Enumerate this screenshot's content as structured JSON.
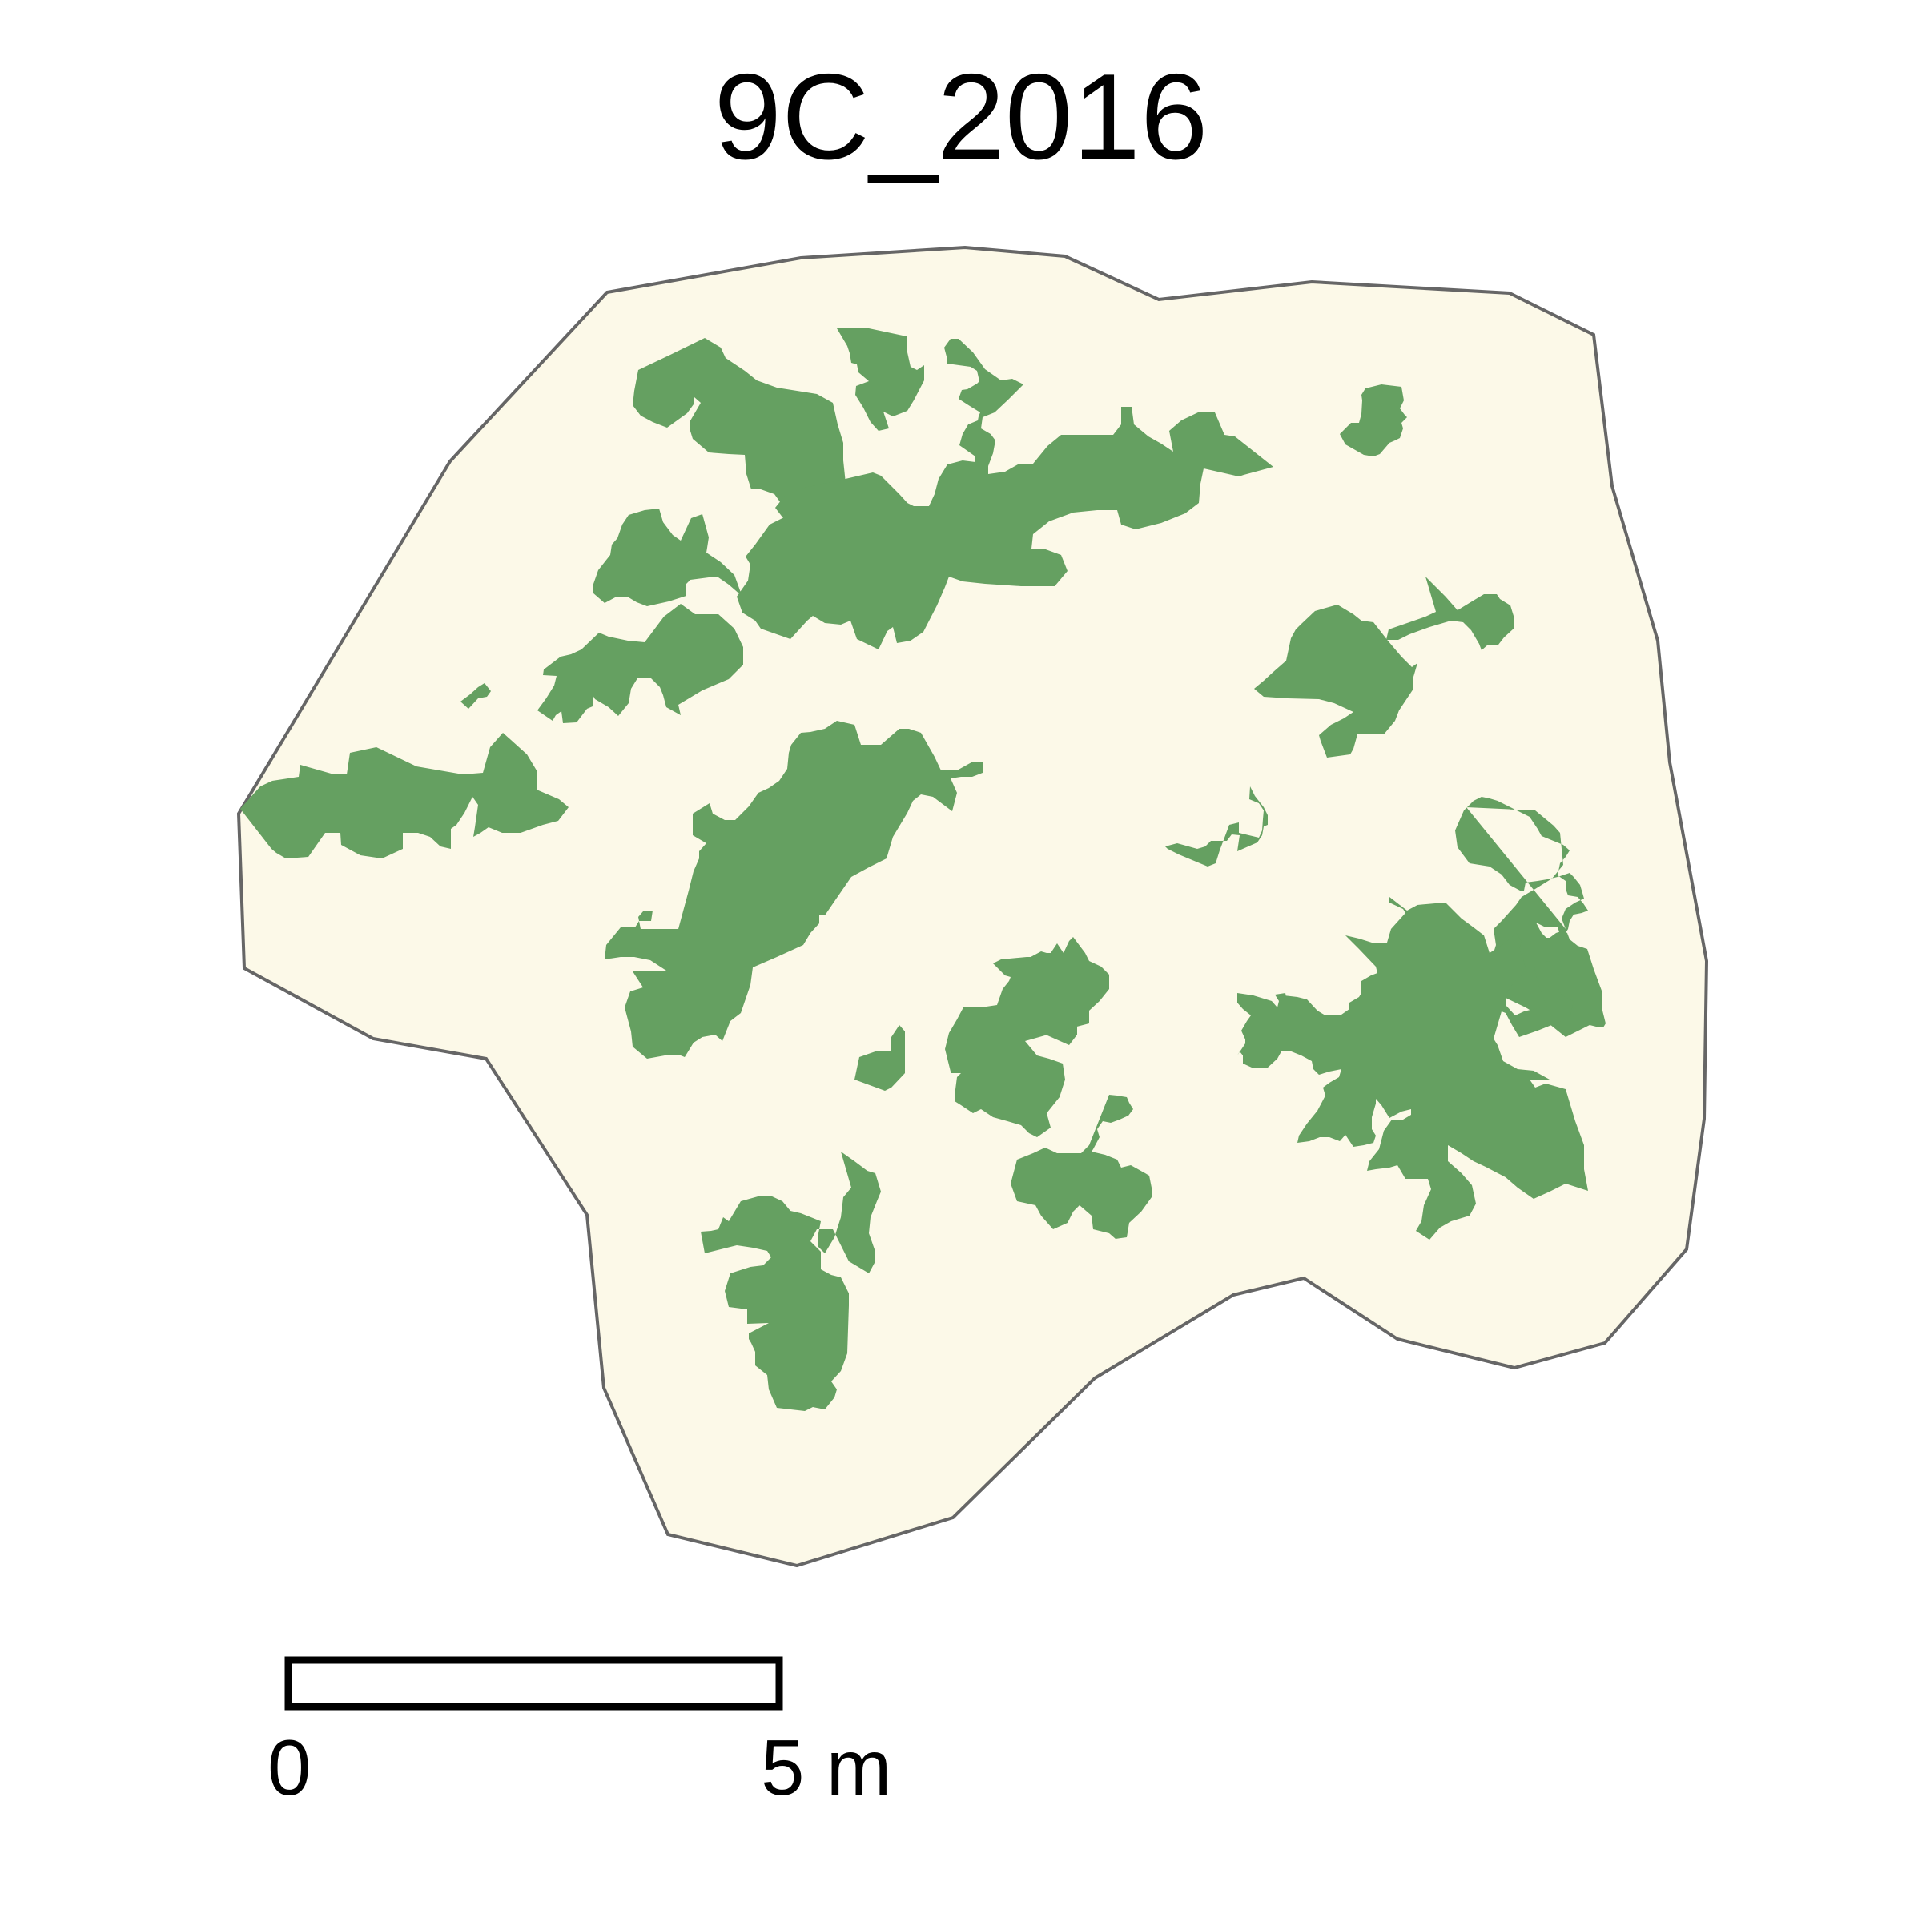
{
  "map": {
    "title": "9C_2016",
    "colors": {
      "plot_fill": "#fcf9e8",
      "plot_outline": "#666666",
      "vegetation_fill": "#65a061",
      "scalebar": "#000000",
      "background": "#ffffff"
    },
    "scalebar": {
      "start_label": "0",
      "end_label": "5 m",
      "length_value": 5,
      "unit": "m"
    }
  }
}
